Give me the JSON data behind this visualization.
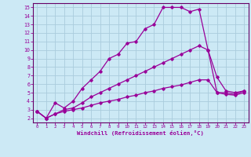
{
  "xlabel": "Windchill (Refroidissement éolien,°C)",
  "bg_color": "#cce9f5",
  "grid_color": "#aaccdd",
  "line_color": "#990099",
  "spine_color": "#660066",
  "xlim": [
    -0.5,
    23.5
  ],
  "ylim": [
    1.5,
    15.5
  ],
  "xticks": [
    0,
    1,
    2,
    3,
    4,
    5,
    6,
    7,
    8,
    9,
    10,
    11,
    12,
    13,
    14,
    15,
    16,
    17,
    18,
    19,
    20,
    21,
    22,
    23
  ],
  "yticks": [
    2,
    3,
    4,
    5,
    6,
    7,
    8,
    9,
    10,
    11,
    12,
    13,
    14,
    15
  ],
  "line1_x": [
    0,
    1,
    2,
    3,
    4,
    5,
    6,
    7,
    8,
    9,
    10,
    11,
    12,
    13,
    14,
    15,
    16,
    17,
    18,
    19,
    20,
    21,
    22,
    23
  ],
  "line1_y": [
    2.8,
    2.0,
    3.8,
    3.2,
    4.0,
    5.5,
    6.5,
    7.5,
    9.0,
    9.5,
    10.8,
    11.0,
    12.5,
    13.0,
    15.0,
    15.0,
    15.0,
    14.5,
    14.8,
    10.0,
    5.0,
    5.0,
    4.8,
    5.2
  ],
  "line2_x": [
    0,
    1,
    2,
    3,
    4,
    5,
    6,
    7,
    8,
    9,
    10,
    11,
    12,
    13,
    14,
    15,
    16,
    17,
    18,
    19,
    20,
    21,
    22,
    23
  ],
  "line2_y": [
    2.8,
    2.0,
    2.5,
    3.0,
    3.2,
    3.8,
    4.5,
    5.0,
    5.5,
    6.0,
    6.5,
    7.0,
    7.5,
    8.0,
    8.5,
    9.0,
    9.5,
    10.0,
    10.5,
    10.0,
    6.8,
    5.2,
    5.0,
    5.2
  ],
  "line3_x": [
    0,
    1,
    2,
    3,
    4,
    5,
    6,
    7,
    8,
    9,
    10,
    11,
    12,
    13,
    14,
    15,
    16,
    17,
    18,
    19,
    20,
    21,
    22,
    23
  ],
  "line3_y": [
    2.8,
    2.0,
    2.5,
    2.8,
    3.0,
    3.2,
    3.5,
    3.8,
    4.0,
    4.2,
    4.5,
    4.7,
    5.0,
    5.2,
    5.5,
    5.7,
    5.9,
    6.2,
    6.5,
    6.5,
    5.0,
    4.8,
    4.7,
    5.0
  ]
}
